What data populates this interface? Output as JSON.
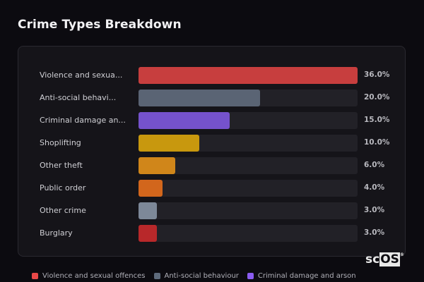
{
  "title": "Crime Types Breakdown",
  "watermark": "scOS",
  "chart_data": {
    "type": "bar",
    "orientation": "horizontal",
    "title": "Crime Types Breakdown",
    "categories": [
      "Violence and sexua...",
      "Anti-social behavi...",
      "Criminal damage an...",
      "Shoplifting",
      "Other theft",
      "Public order",
      "Other crime",
      "Burglary"
    ],
    "values": [
      36.0,
      20.0,
      15.0,
      10.0,
      6.0,
      4.0,
      3.0,
      3.0
    ],
    "value_labels": [
      "36.0%",
      "20.0%",
      "15.0%",
      "10.0%",
      "6.0%",
      "4.0%",
      "3.0%",
      "3.0%"
    ],
    "colors": [
      "#c73e3e",
      "#5a6474",
      "#7552cc",
      "#c8980e",
      "#d0861a",
      "#d2661c",
      "#7d8898",
      "#b8282a"
    ],
    "unit": "%",
    "grid": false,
    "legend_position": "bottom",
    "legend": [
      {
        "label": "Violence and sexual offences",
        "color": "#e84848"
      },
      {
        "label": "Anti-social behaviour",
        "color": "#5e6b7c"
      },
      {
        "label": "Criminal damage and arson",
        "color": "#8a5cf0"
      }
    ]
  }
}
